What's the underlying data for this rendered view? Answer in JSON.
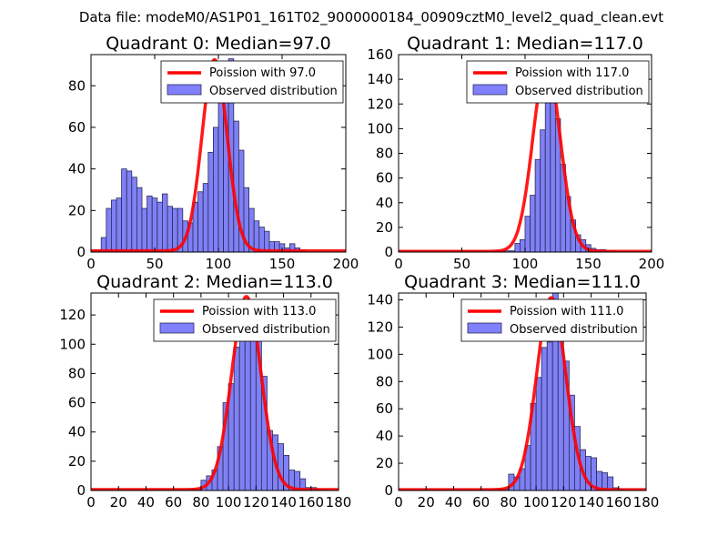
{
  "figure_title": "Data file: modeM0/AS1P01_161T02_9000000184_00909cztM0_level2_quad_clean.evt",
  "colors": {
    "bar_fill": "#8080f5",
    "bar_edge": "#2a2a5a",
    "poisson_line": "#ff0000",
    "legend_patch": "#8080ff"
  },
  "chart_data": [
    {
      "type": "bar",
      "title": "Quadrant 0: Median=97.0",
      "median": 97.0,
      "xlim": [
        0,
        200
      ],
      "ylim": [
        0,
        95
      ],
      "xticks": [
        0,
        50,
        100,
        150,
        200
      ],
      "yticks": [
        0,
        20,
        40,
        60,
        80
      ],
      "bin_width": 4,
      "bin_starts": [
        0,
        4,
        8,
        12,
        16,
        20,
        24,
        28,
        32,
        36,
        40,
        44,
        48,
        52,
        56,
        60,
        64,
        68,
        72,
        76,
        80,
        84,
        88,
        92,
        96,
        100,
        104,
        108,
        112,
        116,
        120,
        124,
        128,
        132,
        136,
        140,
        144,
        148,
        152,
        156,
        160,
        164,
        168,
        172,
        176,
        180,
        184,
        188
      ],
      "counts": [
        1,
        1,
        7,
        21,
        25,
        26,
        40,
        39,
        36,
        31,
        21,
        27,
        26,
        24,
        28,
        22,
        21,
        21,
        15,
        14,
        24,
        29,
        33,
        48,
        60,
        75,
        89,
        93,
        63,
        49,
        31,
        21,
        15,
        12,
        10,
        5,
        5,
        4,
        2,
        4,
        2,
        1,
        0,
        0,
        0,
        0,
        0,
        0
      ],
      "legend": [
        "Poission with 97.0",
        "Observed distribution"
      ],
      "poisson": {
        "lambda": 97.0,
        "peak": 92
      }
    },
    {
      "type": "bar",
      "title": "Quadrant 1: Median=117.0",
      "median": 117.0,
      "xlim": [
        0,
        200
      ],
      "ylim": [
        0,
        160
      ],
      "xticks": [
        0,
        50,
        100,
        150,
        200
      ],
      "yticks": [
        0,
        20,
        40,
        60,
        80,
        100,
        120,
        140,
        160
      ],
      "bin_width": 4,
      "bin_starts": [
        0,
        4,
        8,
        12,
        16,
        20,
        24,
        28,
        32,
        36,
        40,
        44,
        48,
        52,
        56,
        60,
        64,
        68,
        72,
        76,
        80,
        84,
        88,
        92,
        96,
        100,
        104,
        108,
        112,
        116,
        120,
        124,
        128,
        132,
        136,
        140,
        144,
        148,
        152,
        156,
        160,
        164,
        168,
        172,
        176,
        180
      ],
      "counts": [
        1,
        1,
        1,
        1,
        1,
        1,
        1,
        1,
        1,
        1,
        1,
        1,
        1,
        1,
        1,
        1,
        1,
        1,
        1,
        1,
        1,
        1,
        1,
        7,
        10,
        29,
        46,
        75,
        99,
        141,
        150,
        108,
        71,
        45,
        26,
        14,
        10,
        6,
        3,
        2,
        2,
        1,
        1,
        0,
        0,
        0
      ],
      "legend": [
        "Poission with 117.0",
        "Observed distribution"
      ],
      "poisson": {
        "lambda": 117.0,
        "peak": 152
      }
    },
    {
      "type": "bar",
      "title": "Quadrant 2: Median=113.0",
      "median": 113.0,
      "xlim": [
        0,
        180
      ],
      "ylim": [
        0,
        135
      ],
      "xticks": [
        0,
        20,
        40,
        60,
        80,
        100,
        120,
        140,
        160,
        180
      ],
      "yticks": [
        0,
        20,
        40,
        60,
        80,
        100,
        120
      ],
      "bin_width": 4,
      "bin_starts": [
        0,
        4,
        8,
        12,
        16,
        20,
        24,
        28,
        32,
        36,
        40,
        44,
        48,
        52,
        56,
        60,
        64,
        68,
        72,
        76,
        80,
        84,
        88,
        92,
        96,
        100,
        104,
        108,
        112,
        116,
        120,
        124,
        128,
        132,
        136,
        140,
        144,
        148,
        152,
        156,
        160,
        164,
        168,
        172
      ],
      "counts": [
        1,
        1,
        1,
        1,
        1,
        1,
        1,
        1,
        1,
        1,
        1,
        1,
        1,
        1,
        1,
        1,
        1,
        1,
        1,
        1,
        7,
        10,
        14,
        30,
        60,
        73,
        98,
        115,
        127,
        115,
        105,
        78,
        41,
        38,
        32,
        24,
        14,
        13,
        8,
        2,
        2,
        1,
        1,
        0
      ],
      "legend": [
        "Poission with 113.0",
        "Observed distribution"
      ],
      "poisson": {
        "lambda": 113.0,
        "peak": 132
      }
    },
    {
      "type": "bar",
      "title": "Quadrant 3: Median=111.0",
      "median": 111.0,
      "xlim": [
        0,
        180
      ],
      "ylim": [
        0,
        145
      ],
      "xticks": [
        0,
        20,
        40,
        60,
        80,
        100,
        120,
        140,
        160,
        180
      ],
      "yticks": [
        0,
        20,
        40,
        60,
        80,
        100,
        120,
        140
      ],
      "bin_width": 4,
      "bin_starts": [
        0,
        4,
        8,
        12,
        16,
        20,
        24,
        28,
        32,
        36,
        40,
        44,
        48,
        52,
        56,
        60,
        64,
        68,
        72,
        76,
        80,
        84,
        88,
        92,
        96,
        100,
        104,
        108,
        112,
        116,
        120,
        124,
        128,
        132,
        136,
        140,
        144,
        148,
        152,
        156,
        160,
        164,
        168,
        172
      ],
      "counts": [
        1,
        1,
        1,
        1,
        1,
        1,
        1,
        1,
        1,
        1,
        1,
        1,
        1,
        1,
        1,
        1,
        1,
        1,
        1,
        1,
        12,
        10,
        16,
        33,
        64,
        83,
        105,
        109,
        145,
        116,
        95,
        70,
        47,
        30,
        25,
        24,
        14,
        13,
        10,
        2,
        1,
        0,
        0,
        0
      ],
      "legend": [
        "Poission with 111.0",
        "Observed distribution"
      ],
      "poisson": {
        "lambda": 111.0,
        "peak": 141
      }
    }
  ]
}
